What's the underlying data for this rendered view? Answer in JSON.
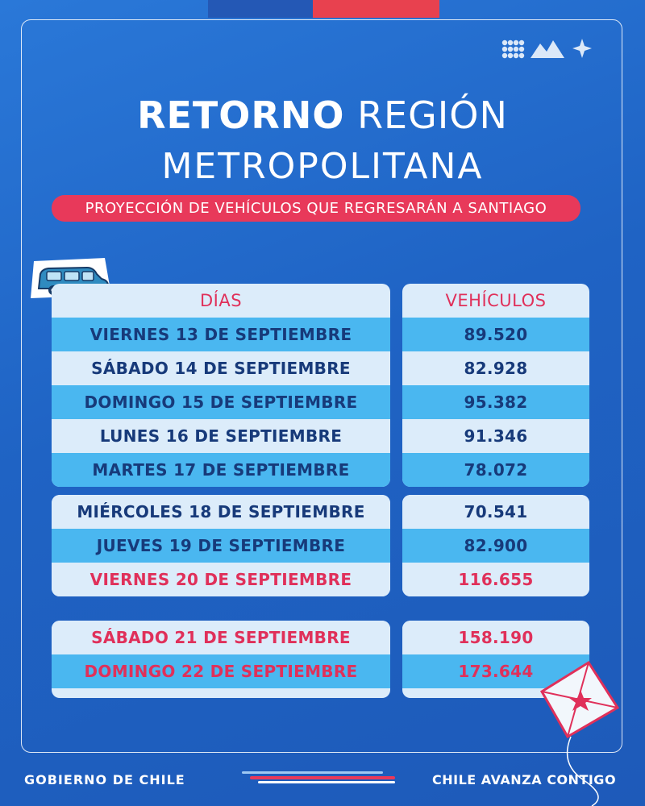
{
  "title": {
    "line1_bold": "RETORNO",
    "line1_light": "REGIÓN",
    "line2": "METROPOLITANA",
    "subtitle": "PROYECCIÓN DE VEHÍCULOS QUE REGRESARÁN A SANTIAGO"
  },
  "table": {
    "col_days": "DÍAS",
    "col_vehicles": "VEHÍCULOS",
    "group1": [
      {
        "day": "VIERNES 13 DE SEPTIEMBRE",
        "vehicles": "89.520"
      },
      {
        "day": "SÁBADO 14 DE SEPTIEMBRE",
        "vehicles": "82.928"
      },
      {
        "day": "DOMINGO 15 DE SEPTIEMBRE",
        "vehicles": "95.382"
      },
      {
        "day": "LUNES 16 DE SEPTIEMBRE",
        "vehicles": "91.346"
      },
      {
        "day": "MARTES 17 DE SEPTIEMBRE",
        "vehicles": "78.072"
      }
    ],
    "group2": [
      {
        "day": "MIÉRCOLES 18 DE SEPTIEMBRE",
        "vehicles": "70.541"
      },
      {
        "day": "JUEVES 19 DE SEPTIEMBRE",
        "vehicles": "82.900"
      },
      {
        "day": "VIERNES 20 DE SEPTIEMBRE",
        "vehicles": "116.655"
      }
    ],
    "group3": [
      {
        "day": "SÁBADO 21 DE SEPTIEMBRE",
        "vehicles": "158.190"
      },
      {
        "day": "DOMINGO 22 DE SEPTIEMBRE",
        "vehicles": "173.644"
      }
    ]
  },
  "footer": {
    "left": "GOBIERNO DE CHILE",
    "right": "CHILE AVANZA CONTIGO"
  },
  "icons": [
    "car-icon",
    "kite-icon",
    "brand-logo-icon"
  ],
  "colors": {
    "background": "#1f63c4",
    "accent_red": "#e8395a",
    "row_alt": "#4ab7f0",
    "row_light": "#dcecfa",
    "text_dark": "#173a7a"
  }
}
